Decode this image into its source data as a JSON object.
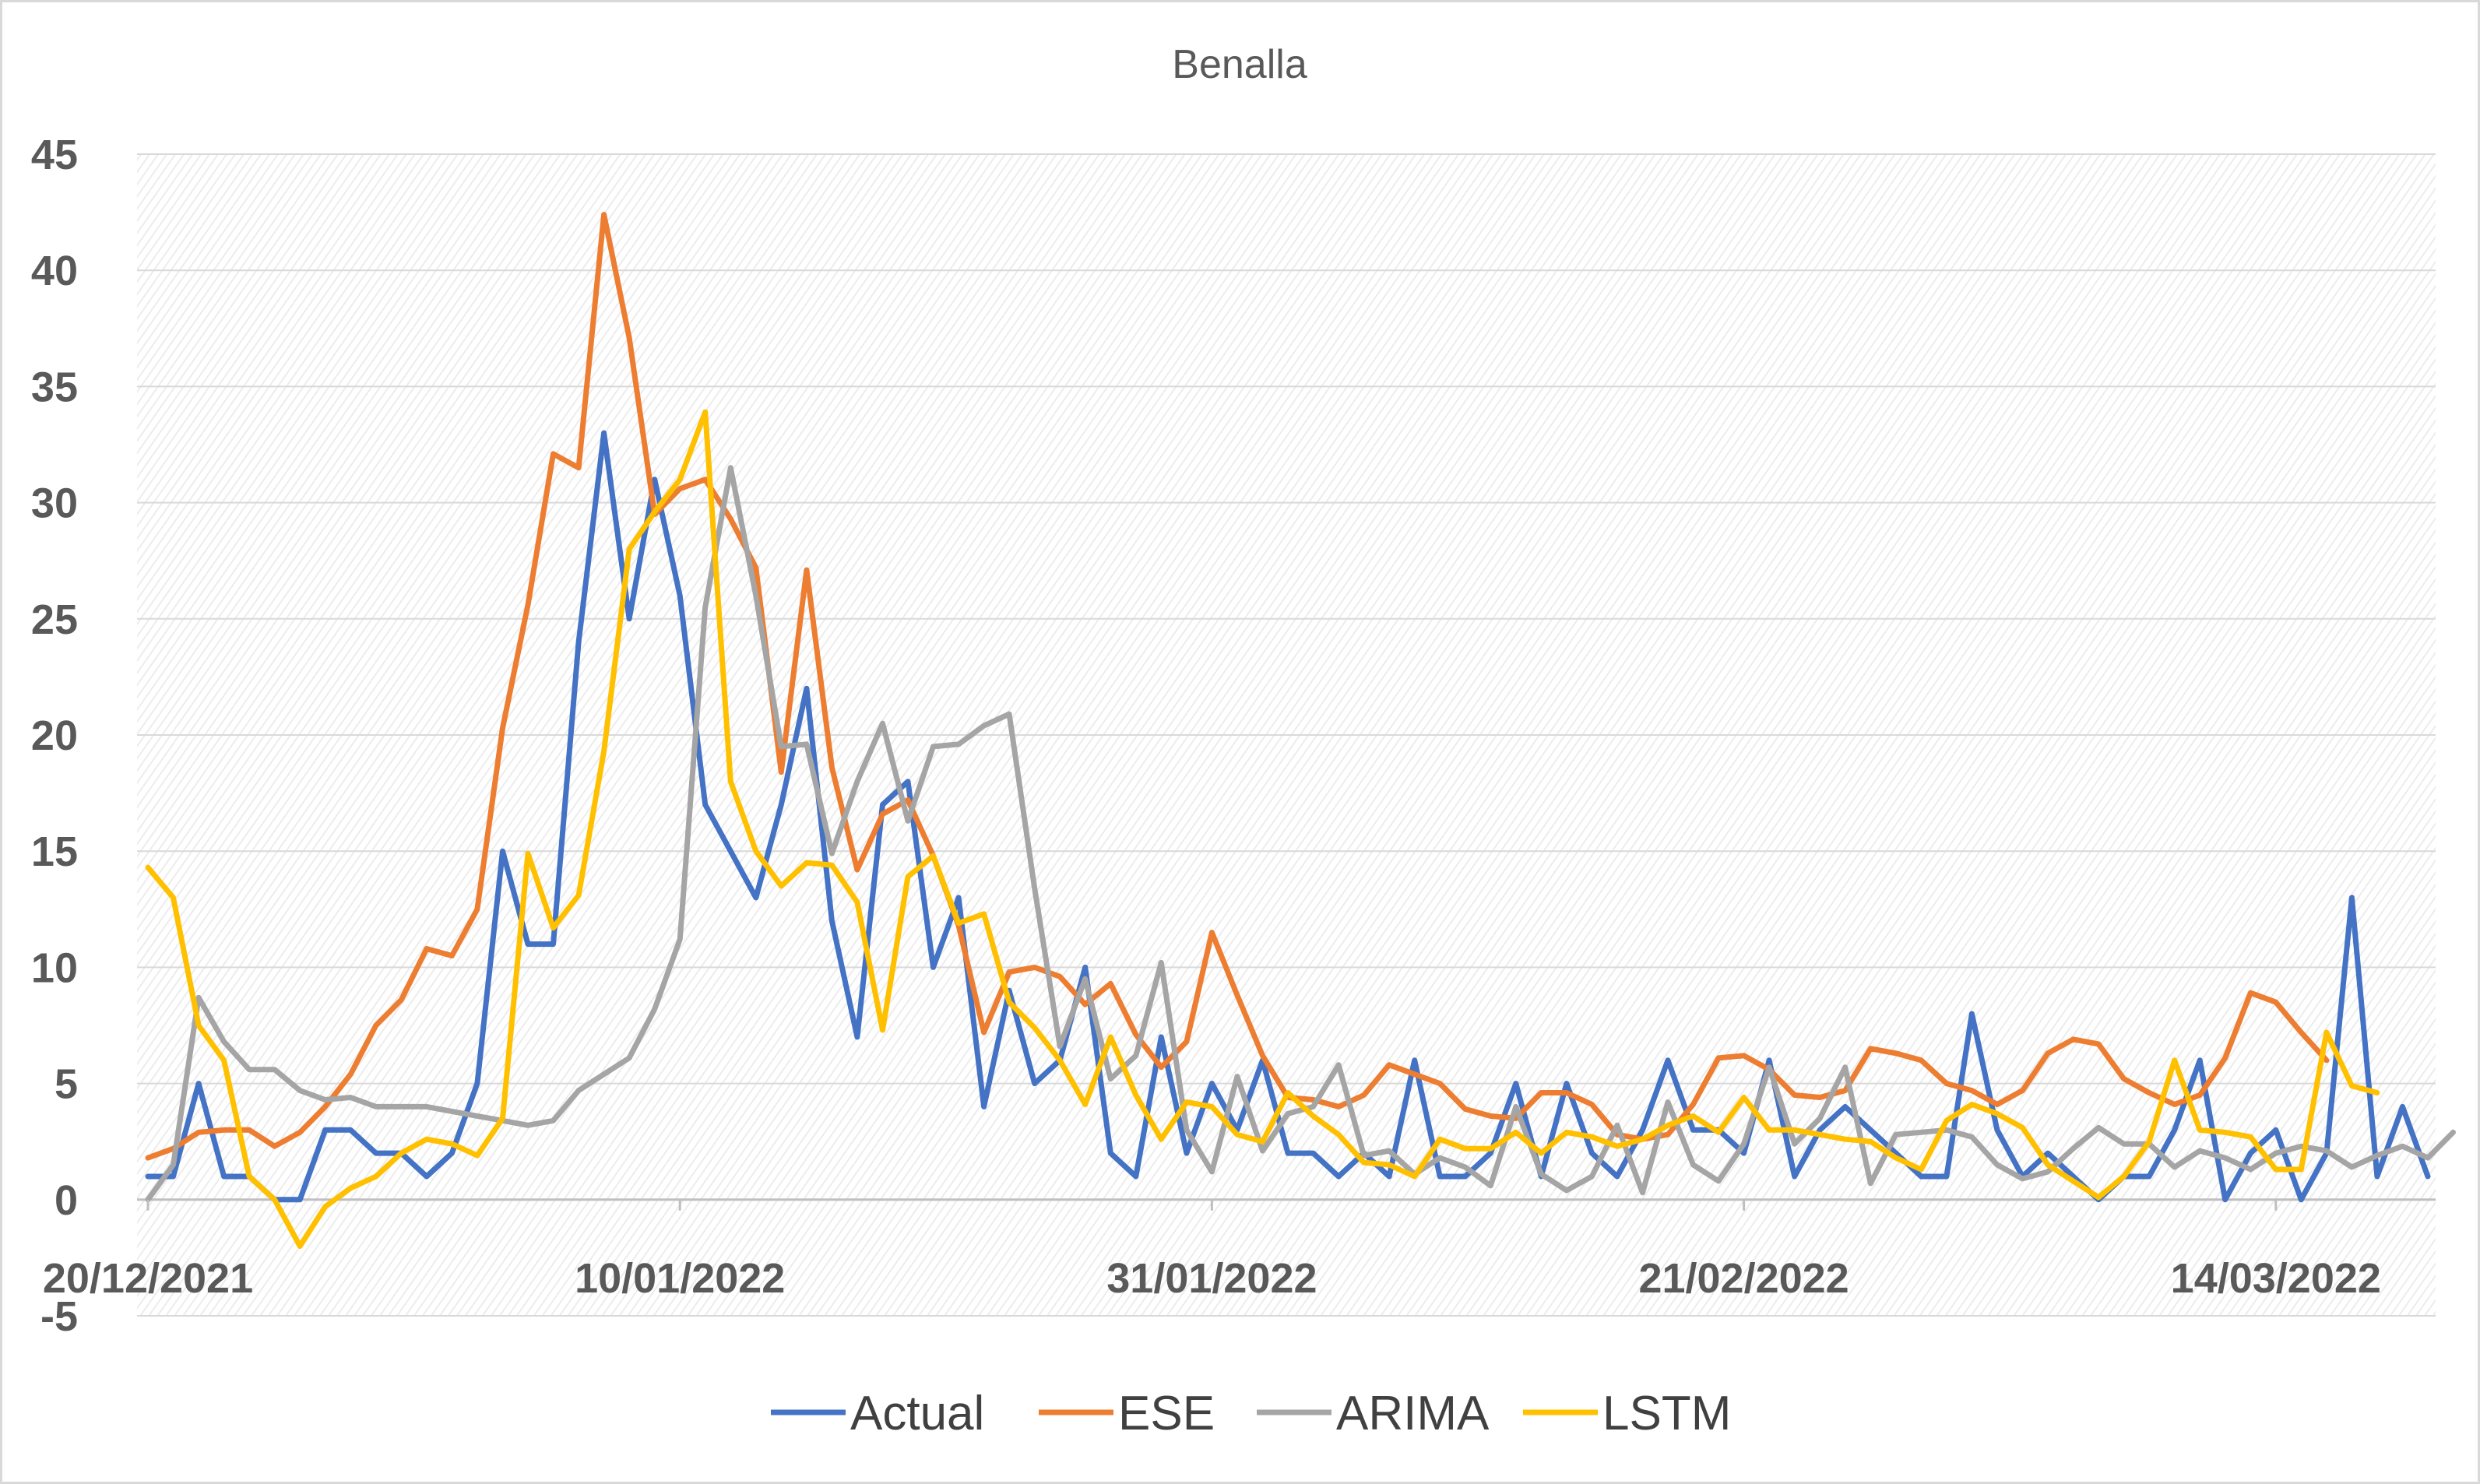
{
  "chart_data": {
    "type": "line",
    "title": "Benalla",
    "xlabel": "",
    "ylabel": "",
    "ylim": [
      -5,
      45
    ],
    "yticks": [
      -5,
      0,
      5,
      10,
      15,
      20,
      25,
      30,
      35,
      40,
      45
    ],
    "x_start": "20/12/2021",
    "x_tick_labels": [
      {
        "index": 0,
        "label": "20/12/2021"
      },
      {
        "index": 21,
        "label": "10/01/2022"
      },
      {
        "index": 42,
        "label": "31/01/2022"
      },
      {
        "index": 63,
        "label": "21/02/2022"
      },
      {
        "index": 84,
        "label": "14/03/2022"
      }
    ],
    "grid": true,
    "legend": "bottom",
    "series": [
      {
        "name": "Actual",
        "color": "#4472C4",
        "values": [
          1,
          1,
          5,
          1,
          1,
          0,
          0,
          3,
          3,
          2,
          2,
          1,
          2,
          5,
          15,
          11,
          11,
          24,
          33,
          25,
          31,
          26,
          17,
          15,
          13,
          17,
          22,
          12,
          7,
          17,
          18,
          10,
          13,
          4,
          9,
          5,
          6,
          10,
          2,
          1,
          7,
          2,
          5,
          3,
          6,
          2,
          2,
          1,
          2,
          1,
          6,
          1,
          1,
          2,
          5,
          1,
          5,
          2,
          1,
          3,
          6,
          3,
          3,
          2,
          6,
          1,
          3,
          4,
          3,
          2,
          1,
          1,
          8,
          3,
          1,
          2,
          1,
          0,
          1,
          1,
          3,
          6,
          0,
          2,
          3,
          0,
          2,
          13,
          1,
          4,
          1
        ]
      },
      {
        "name": "ESE",
        "color": "#ED7D31",
        "values": [
          1.8,
          2.2,
          2.9,
          3.0,
          3.0,
          2.3,
          2.9,
          4.0,
          5.4,
          7.5,
          8.6,
          10.8,
          10.5,
          12.5,
          20.3,
          25.6,
          32.1,
          31.5,
          42.4,
          37.1,
          29.5,
          30.6,
          31.0,
          29.3,
          27.2,
          18.4,
          27.1,
          18.6,
          14.2,
          16.6,
          17.2,
          14.8,
          11.8,
          7.2,
          9.8,
          10.0,
          9.6,
          8.4,
          9.3,
          7.1,
          5.7,
          6.8,
          11.5,
          8.8,
          6.2,
          4.4,
          4.3,
          4.0,
          4.5,
          5.8,
          5.4,
          5.0,
          3.9,
          3.6,
          3.5,
          4.6,
          4.6,
          4.1,
          2.8,
          2.6,
          2.8,
          4.1,
          6.1,
          6.2,
          5.6,
          4.5,
          4.4,
          4.7,
          6.5,
          6.3,
          6.0,
          5.0,
          4.7,
          4.1,
          4.7,
          6.3,
          6.9,
          6.7,
          5.2,
          4.6,
          4.1,
          4.5,
          6.1,
          8.9,
          8.5,
          7.2,
          6.0
        ]
      },
      {
        "name": "ARIMA",
        "color": "#A5A5A5",
        "values": [
          0,
          1.5,
          8.7,
          6.8,
          5.6,
          5.6,
          4.7,
          4.3,
          4.4,
          4.0,
          4.0,
          4.0,
          3.8,
          3.6,
          3.4,
          3.2,
          3.4,
          4.7,
          5.4,
          6.1,
          8.2,
          11.2,
          25.5,
          31.5,
          26.0,
          19.5,
          19.6,
          14.9,
          18.0,
          20.5,
          16.3,
          19.5,
          19.6,
          20.4,
          20.9,
          13.4,
          6.6,
          9.5,
          5.2,
          6.2,
          10.2,
          3.0,
          1.2,
          5.3,
          2.1,
          3.7,
          4.0,
          5.8,
          1.9,
          2.1,
          1.1,
          1.8,
          1.4,
          0.6,
          4.0,
          1.1,
          0.4,
          1.0,
          3.2,
          0.3,
          4.2,
          1.5,
          0.8,
          2.4,
          5.7,
          2.4,
          3.5,
          5.7,
          0.7,
          2.8,
          2.9,
          3.0,
          2.7,
          1.5,
          0.9,
          1.2,
          2.2,
          3.1,
          2.4,
          2.4,
          1.4,
          2.1,
          1.8,
          1.3,
          2.0,
          2.3,
          2.1,
          1.4,
          1.9,
          2.3,
          1.8,
          2.9
        ]
      },
      {
        "name": "LSTM",
        "color": "#FFC000",
        "values": [
          14.3,
          13.0,
          7.5,
          6.0,
          1.0,
          0.0,
          -2.0,
          -0.3,
          0.5,
          1.0,
          2.0,
          2.6,
          2.4,
          1.9,
          3.5,
          14.9,
          11.7,
          13.1,
          19.3,
          28.0,
          29.6,
          31.0,
          33.9,
          18.0,
          15.0,
          13.5,
          14.5,
          14.4,
          12.8,
          7.3,
          13.9,
          14.8,
          11.9,
          12.3,
          8.5,
          7.4,
          6.0,
          4.1,
          7.0,
          4.5,
          2.6,
          4.2,
          4.0,
          2.8,
          2.5,
          4.6,
          3.6,
          2.8,
          1.6,
          1.5,
          1.0,
          2.6,
          2.2,
          2.2,
          2.9,
          2.0,
          2.9,
          2.7,
          2.3,
          2.6,
          3.2,
          3.6,
          2.9,
          4.4,
          3.0,
          3.0,
          2.8,
          2.6,
          2.5,
          1.8,
          1.3,
          3.4,
          4.1,
          3.7,
          3.1,
          1.5,
          0.8,
          0.1,
          1.0,
          2.5,
          6.0,
          3.0,
          2.9,
          2.7,
          1.3,
          1.3,
          7.2,
          4.9,
          4.6
        ]
      }
    ]
  }
}
